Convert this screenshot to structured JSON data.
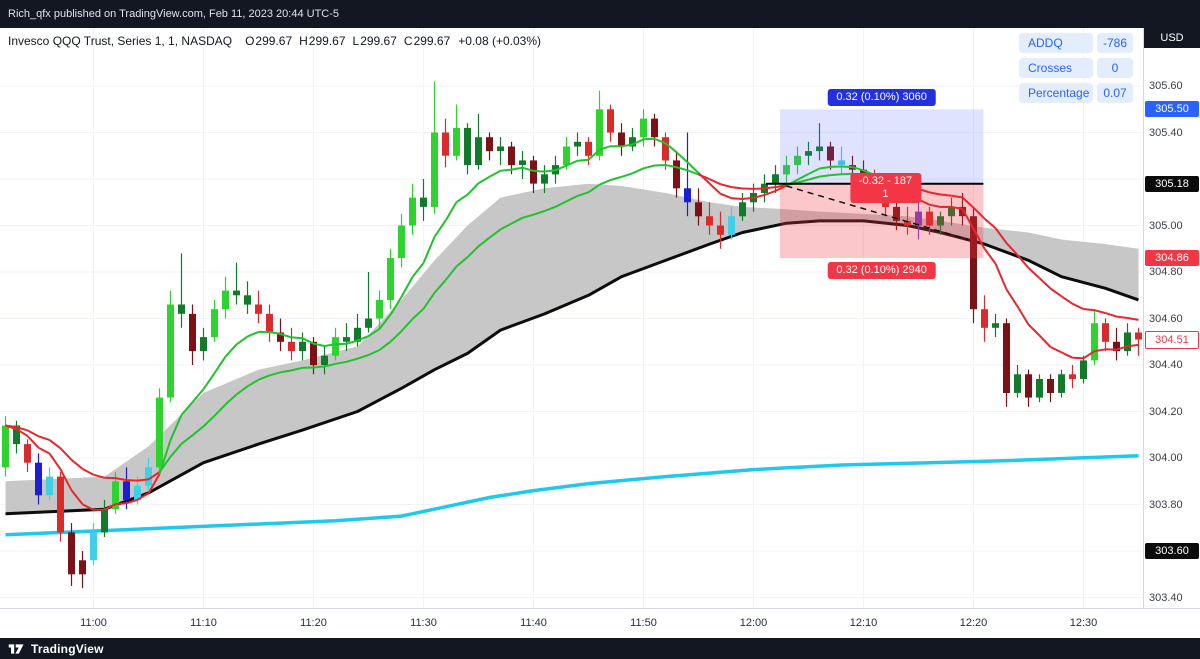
{
  "top_bar": {
    "text": "Rich_qfx published on TradingView.com, Feb 11, 2023 20:44 UTC-5"
  },
  "symbol_header": {
    "title": "Invesco QQQ Trust, Series 1, 1, NASDAQ",
    "ohlc": [
      {
        "label": "O",
        "value": "299.67"
      },
      {
        "label": "H",
        "value": "299.67"
      },
      {
        "label": "L",
        "value": "299.67"
      },
      {
        "label": "C",
        "value": "299.67"
      }
    ],
    "change": "+0.08 (+0.03%)"
  },
  "indicator_panel": {
    "rows": [
      {
        "label": "ADDQ",
        "value": "-786"
      },
      {
        "label": "Crosses",
        "value": "0"
      },
      {
        "label": "Percentage",
        "value": "0.07"
      }
    ]
  },
  "price_axis": {
    "currency": "USD",
    "ticks": [
      {
        "label": "305.60",
        "price": 305.6
      },
      {
        "label": "305.40",
        "price": 305.4
      },
      {
        "label": "305.00",
        "price": 305.0
      },
      {
        "label": "304.80",
        "price": 304.8
      },
      {
        "label": "304.60",
        "price": 304.6
      },
      {
        "label": "304.40",
        "price": 304.4
      },
      {
        "label": "304.20",
        "price": 304.2
      },
      {
        "label": "304.00",
        "price": 304.0
      },
      {
        "label": "303.80",
        "price": 303.8
      },
      {
        "label": "303.40",
        "price": 303.4
      }
    ],
    "badges": [
      {
        "label": "305.50",
        "price": 305.5,
        "bg": "#2962ff",
        "fg": "#ffffff"
      },
      {
        "label": "305.18",
        "price": 305.18,
        "bg": "#0b0b0b",
        "fg": "#ffffff"
      },
      {
        "label": "304.86",
        "price": 304.86,
        "bg": "#f23645",
        "fg": "#ffffff"
      },
      {
        "label": "304.51",
        "price": 304.51,
        "bg": "#ffffff",
        "fg": "#f23645",
        "border": "#f23645"
      },
      {
        "label": "303.60",
        "price": 303.6,
        "bg": "#0b0b0b",
        "fg": "#ffffff"
      }
    ]
  },
  "time_axis": {
    "labels": [
      {
        "t": "11:00",
        "i": 8
      },
      {
        "t": "11:10",
        "i": 18
      },
      {
        "t": "11:20",
        "i": 28
      },
      {
        "t": "11:30",
        "i": 38
      },
      {
        "t": "11:40",
        "i": 48
      },
      {
        "t": "11:50",
        "i": 58
      },
      {
        "t": "12:00",
        "i": 68
      },
      {
        "t": "12:10",
        "i": 78
      },
      {
        "t": "12:20",
        "i": 88
      },
      {
        "t": "12:30",
        "i": 98
      }
    ]
  },
  "bottom_bar": {
    "brand": "TradingView"
  },
  "chart_data": {
    "type": "candlestick",
    "symbol": "QQQ",
    "exchange": "NASDAQ",
    "interval_minutes": 1,
    "start_time": "10:52",
    "end_time": "12:35",
    "price_axis_range": [
      303.4,
      305.65
    ],
    "grid": {
      "show": true,
      "color": "#f1f3f8"
    },
    "candle_colors": {
      "L": "#2fd32f",
      "G": "#117a2b",
      "R": "#d92b2b",
      "M": "#7c1216",
      "C": "#3fd0e8",
      "B": "#1d1dd8",
      "P": "#7a3cc9"
    },
    "candles": [
      [
        303.96,
        304.18,
        303.92,
        304.14,
        "L"
      ],
      [
        304.14,
        304.16,
        304.02,
        304.06,
        "G"
      ],
      [
        304.06,
        304.08,
        303.94,
        303.98,
        "R"
      ],
      [
        303.98,
        304.02,
        303.8,
        303.84,
        "B"
      ],
      [
        303.84,
        303.96,
        303.82,
        303.92,
        "C"
      ],
      [
        303.92,
        303.94,
        303.64,
        303.68,
        "R"
      ],
      [
        303.68,
        303.72,
        303.45,
        303.5,
        "M"
      ],
      [
        303.5,
        303.6,
        303.44,
        303.56,
        "M"
      ],
      [
        303.56,
        303.72,
        303.54,
        303.68,
        "C"
      ],
      [
        303.68,
        303.82,
        303.66,
        303.78,
        "G"
      ],
      [
        303.78,
        303.94,
        303.76,
        303.9,
        "L"
      ],
      [
        303.9,
        303.96,
        303.78,
        303.82,
        "B"
      ],
      [
        303.82,
        303.92,
        303.8,
        303.88,
        "C"
      ],
      [
        303.88,
        304.0,
        303.86,
        303.96,
        "C"
      ],
      [
        303.96,
        304.3,
        303.94,
        304.26,
        "L"
      ],
      [
        304.26,
        304.72,
        304.24,
        304.66,
        "L"
      ],
      [
        304.66,
        304.88,
        304.56,
        304.62,
        "G"
      ],
      [
        304.62,
        304.66,
        304.4,
        304.46,
        "M"
      ],
      [
        304.46,
        304.56,
        304.42,
        304.52,
        "G"
      ],
      [
        304.52,
        304.68,
        304.5,
        304.64,
        "L"
      ],
      [
        304.64,
        304.78,
        304.6,
        304.72,
        "L"
      ],
      [
        304.72,
        304.84,
        304.66,
        304.7,
        "G"
      ],
      [
        304.7,
        304.76,
        304.62,
        304.66,
        "G"
      ],
      [
        304.66,
        304.72,
        304.58,
        304.62,
        "R"
      ],
      [
        304.62,
        304.66,
        304.5,
        304.54,
        "R"
      ],
      [
        304.54,
        304.6,
        304.46,
        304.5,
        "M"
      ],
      [
        304.5,
        304.56,
        304.42,
        304.46,
        "R"
      ],
      [
        304.46,
        304.54,
        304.42,
        304.5,
        "G"
      ],
      [
        304.5,
        304.52,
        304.36,
        304.4,
        "M"
      ],
      [
        304.4,
        304.48,
        304.36,
        304.44,
        "G"
      ],
      [
        304.44,
        304.56,
        304.42,
        304.52,
        "L"
      ],
      [
        304.52,
        304.58,
        304.46,
        304.5,
        "G"
      ],
      [
        304.5,
        304.62,
        304.48,
        304.56,
        "G"
      ],
      [
        304.56,
        304.8,
        304.54,
        304.6,
        "G"
      ],
      [
        304.6,
        304.72,
        304.56,
        304.68,
        "L"
      ],
      [
        304.68,
        304.9,
        304.64,
        304.86,
        "L"
      ],
      [
        304.86,
        305.05,
        304.82,
        305.0,
        "L"
      ],
      [
        305.0,
        305.18,
        304.96,
        305.12,
        "L"
      ],
      [
        305.12,
        305.2,
        305.02,
        305.08,
        "G"
      ],
      [
        305.08,
        305.62,
        305.05,
        305.4,
        "L"
      ],
      [
        305.4,
        305.46,
        305.25,
        305.3,
        "R"
      ],
      [
        305.3,
        305.52,
        305.28,
        305.42,
        "L"
      ],
      [
        305.42,
        305.44,
        305.22,
        305.26,
        "G"
      ],
      [
        305.26,
        305.48,
        305.24,
        305.38,
        "G"
      ],
      [
        305.38,
        305.4,
        305.28,
        305.32,
        "M"
      ],
      [
        305.32,
        305.38,
        305.26,
        305.34,
        "G"
      ],
      [
        305.34,
        305.36,
        305.22,
        305.26,
        "M"
      ],
      [
        305.26,
        305.32,
        305.2,
        305.28,
        "G"
      ],
      [
        305.28,
        305.3,
        305.14,
        305.18,
        "M"
      ],
      [
        305.18,
        305.26,
        305.14,
        305.22,
        "G"
      ],
      [
        305.22,
        305.3,
        305.18,
        305.26,
        "G"
      ],
      [
        305.26,
        305.38,
        305.24,
        305.34,
        "L"
      ],
      [
        305.34,
        305.4,
        305.3,
        305.36,
        "G"
      ],
      [
        305.36,
        305.38,
        305.26,
        305.3,
        "R"
      ],
      [
        305.3,
        305.58,
        305.28,
        305.5,
        "L"
      ],
      [
        305.5,
        305.52,
        305.36,
        305.4,
        "R"
      ],
      [
        305.4,
        305.44,
        305.3,
        305.34,
        "M"
      ],
      [
        305.34,
        305.42,
        305.32,
        305.38,
        "G"
      ],
      [
        305.38,
        305.5,
        305.34,
        305.46,
        "L"
      ],
      [
        305.46,
        305.48,
        305.34,
        305.38,
        "M"
      ],
      [
        305.38,
        305.4,
        305.24,
        305.28,
        "R"
      ],
      [
        305.28,
        305.32,
        305.12,
        305.16,
        "M"
      ],
      [
        305.16,
        305.4,
        305.04,
        305.1,
        "B"
      ],
      [
        305.1,
        305.16,
        305.0,
        305.04,
        "M"
      ],
      [
        305.04,
        305.1,
        304.96,
        305.0,
        "R"
      ],
      [
        305.0,
        305.06,
        304.9,
        304.96,
        "R"
      ],
      [
        304.96,
        305.08,
        304.94,
        305.04,
        "C"
      ],
      [
        305.04,
        305.14,
        305.02,
        305.1,
        "G"
      ],
      [
        305.1,
        305.18,
        305.06,
        305.14,
        "G"
      ],
      [
        305.14,
        305.22,
        305.1,
        305.18,
        "G"
      ],
      [
        305.18,
        305.26,
        305.14,
        305.22,
        "G"
      ],
      [
        305.22,
        305.3,
        305.18,
        305.26,
        "L"
      ],
      [
        305.26,
        305.34,
        305.22,
        305.3,
        "L"
      ],
      [
        305.3,
        305.36,
        305.26,
        305.32,
        "G"
      ],
      [
        305.32,
        305.44,
        305.28,
        305.34,
        "G"
      ],
      [
        305.34,
        305.36,
        305.24,
        305.28,
        "M"
      ],
      [
        305.28,
        305.34,
        305.22,
        305.26,
        "C"
      ],
      [
        305.26,
        305.3,
        305.2,
        305.24,
        "M"
      ],
      [
        305.24,
        305.28,
        305.14,
        305.18,
        "M"
      ],
      [
        305.18,
        305.24,
        305.1,
        305.14,
        "R"
      ],
      [
        305.14,
        305.18,
        305.04,
        305.08,
        "R"
      ],
      [
        305.08,
        305.12,
        304.98,
        305.02,
        "M"
      ],
      [
        305.02,
        305.08,
        304.96,
        305.0,
        "R"
      ],
      [
        305.0,
        305.1,
        304.94,
        305.06,
        "P"
      ],
      [
        305.06,
        305.08,
        304.96,
        305.0,
        "R"
      ],
      [
        305.0,
        305.06,
        304.96,
        305.04,
        "G"
      ],
      [
        305.04,
        305.12,
        305.0,
        305.08,
        "G"
      ],
      [
        305.08,
        305.14,
        305.0,
        305.04,
        "M"
      ],
      [
        305.04,
        305.08,
        304.58,
        304.64,
        "M"
      ],
      [
        304.64,
        304.7,
        304.5,
        304.56,
        "R"
      ],
      [
        304.56,
        304.62,
        304.52,
        304.58,
        "G"
      ],
      [
        304.58,
        304.6,
        304.22,
        304.28,
        "M"
      ],
      [
        304.28,
        304.4,
        304.26,
        304.36,
        "G"
      ],
      [
        304.36,
        304.38,
        304.22,
        304.26,
        "M"
      ],
      [
        304.26,
        304.36,
        304.24,
        304.34,
        "G"
      ],
      [
        304.34,
        304.36,
        304.24,
        304.28,
        "M"
      ],
      [
        304.28,
        304.38,
        304.26,
        304.36,
        "G"
      ],
      [
        304.36,
        304.4,
        304.3,
        304.34,
        "R"
      ],
      [
        304.34,
        304.44,
        304.32,
        304.42,
        "G"
      ],
      [
        304.42,
        304.64,
        304.4,
        304.58,
        "L"
      ],
      [
        304.58,
        304.6,
        304.46,
        304.5,
        "R"
      ],
      [
        304.5,
        304.56,
        304.42,
        304.46,
        "M"
      ],
      [
        304.46,
        304.58,
        304.44,
        304.54,
        "G"
      ],
      [
        304.54,
        304.56,
        304.44,
        304.51,
        "R"
      ]
    ],
    "overlays": {
      "gray_band": {
        "fill": "#c7c7c7",
        "edge_color": "#0d0d0d",
        "points": [
          [
            0,
            303.9,
            303.76
          ],
          [
            9,
            303.92,
            303.78
          ],
          [
            13,
            304.05,
            303.85
          ],
          [
            18,
            304.28,
            303.98
          ],
          [
            23,
            304.38,
            304.06
          ],
          [
            27,
            304.42,
            304.12
          ],
          [
            32,
            304.48,
            304.2
          ],
          [
            36,
            304.68,
            304.3
          ],
          [
            39,
            304.85,
            304.38
          ],
          [
            42,
            305.0,
            304.45
          ],
          [
            45,
            305.12,
            304.55
          ],
          [
            49,
            305.16,
            304.62
          ],
          [
            53,
            305.18,
            304.7
          ],
          [
            56,
            305.17,
            304.78
          ],
          [
            60,
            305.14,
            304.85
          ],
          [
            64,
            305.1,
            304.92
          ],
          [
            67,
            305.08,
            304.97
          ],
          [
            71,
            305.07,
            305.01
          ],
          [
            74,
            305.06,
            305.02
          ],
          [
            78,
            305.05,
            305.02
          ],
          [
            82,
            305.04,
            305.0
          ],
          [
            85,
            305.02,
            304.97
          ],
          [
            89,
            304.99,
            304.92
          ],
          [
            93,
            304.97,
            304.85
          ],
          [
            96,
            304.94,
            304.78
          ],
          [
            100,
            304.92,
            304.73
          ],
          [
            103,
            304.9,
            304.68
          ]
        ]
      },
      "cyan_line": {
        "color": "#1ec9ec",
        "width": 3.5,
        "points": [
          [
            0,
            303.67
          ],
          [
            10,
            303.69
          ],
          [
            20,
            303.71
          ],
          [
            30,
            303.73
          ],
          [
            36,
            303.75
          ],
          [
            40,
            303.79
          ],
          [
            44,
            303.83
          ],
          [
            48,
            303.86
          ],
          [
            53,
            303.89
          ],
          [
            60,
            303.92
          ],
          [
            68,
            303.95
          ],
          [
            76,
            303.97
          ],
          [
            84,
            303.98
          ],
          [
            92,
            303.99
          ],
          [
            103,
            304.01
          ]
        ]
      },
      "fast_emas": {
        "periods": [
          9,
          21
        ],
        "up_color": "#21c22e",
        "down_color": "#e8262c"
      },
      "range_tool": {
        "start_i": 70.4,
        "end_i": 88.9,
        "entry": 305.18,
        "target": 305.5,
        "stop": 304.86,
        "upper_box_fill": "rgba(83,99,255,0.18)",
        "lower_box_fill": "rgba(242,54,69,0.28)",
        "upper_label": "0.32 (0.10%) 3060",
        "upper_label_bg": "#2330e0",
        "lower_label": "0.32 (0.10%) 2940",
        "lower_label_bg": "#f23645",
        "mid_label_lines": [
          "-0.32 - 187",
          "1"
        ],
        "mid_label_bg": "#f23645",
        "entry_line_color": "#000000",
        "dashed_line": {
          "from_i": 71,
          "from_p": 305.17,
          "to_i": 87.5,
          "to_p": 304.94
        }
      }
    }
  }
}
